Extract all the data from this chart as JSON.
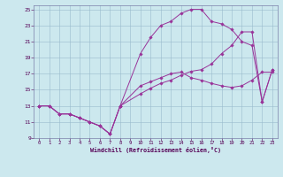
{
  "xlabel": "Windchill (Refroidissement éolien,°C)",
  "bg_color": "#cce8ee",
  "line_color": "#993399",
  "xlim_min": -0.5,
  "xlim_max": 23.5,
  "ylim_min": 9,
  "ylim_max": 25.5,
  "xticks": [
    0,
    1,
    2,
    3,
    4,
    5,
    6,
    7,
    8,
    9,
    10,
    11,
    12,
    13,
    14,
    15,
    16,
    17,
    18,
    19,
    20,
    21,
    22,
    23
  ],
  "yticks": [
    9,
    11,
    13,
    15,
    17,
    19,
    21,
    23,
    25
  ],
  "line1_x": [
    0,
    1,
    2,
    3,
    4,
    5,
    6,
    7,
    8,
    10,
    11,
    12,
    13,
    14,
    15,
    16,
    17,
    18,
    19,
    20,
    21,
    22,
    23
  ],
  "line1_y": [
    13,
    13,
    12,
    12,
    11.5,
    11,
    10.5,
    9.5,
    13,
    15.5,
    16,
    16.5,
    17,
    17.2,
    16.5,
    16.2,
    15.8,
    15.5,
    15.3,
    15.5,
    16.2,
    17.2,
    17.2
  ],
  "line2_x": [
    0,
    1,
    2,
    3,
    4,
    5,
    6,
    7,
    8,
    10,
    11,
    12,
    13,
    14,
    15,
    16,
    17,
    18,
    19,
    20,
    21,
    22,
    23
  ],
  "line2_y": [
    13,
    13,
    12,
    12,
    11.5,
    11,
    10.5,
    9.5,
    13,
    19.5,
    21.5,
    23,
    23.5,
    24.5,
    25,
    25,
    23.5,
    23.2,
    22.5,
    21,
    20.5,
    13.5,
    17.5
  ],
  "line3_x": [
    0,
    1,
    2,
    3,
    4,
    5,
    6,
    7,
    8,
    10,
    11,
    12,
    13,
    14,
    15,
    16,
    17,
    18,
    19,
    20,
    21,
    22,
    23
  ],
  "line3_y": [
    13,
    13,
    12,
    12,
    11.5,
    11,
    10.5,
    9.5,
    13,
    14.5,
    15.2,
    15.8,
    16.2,
    16.8,
    17.3,
    17.5,
    18.2,
    19.5,
    20.5,
    22.2,
    22.2,
    13.5,
    17.5
  ]
}
